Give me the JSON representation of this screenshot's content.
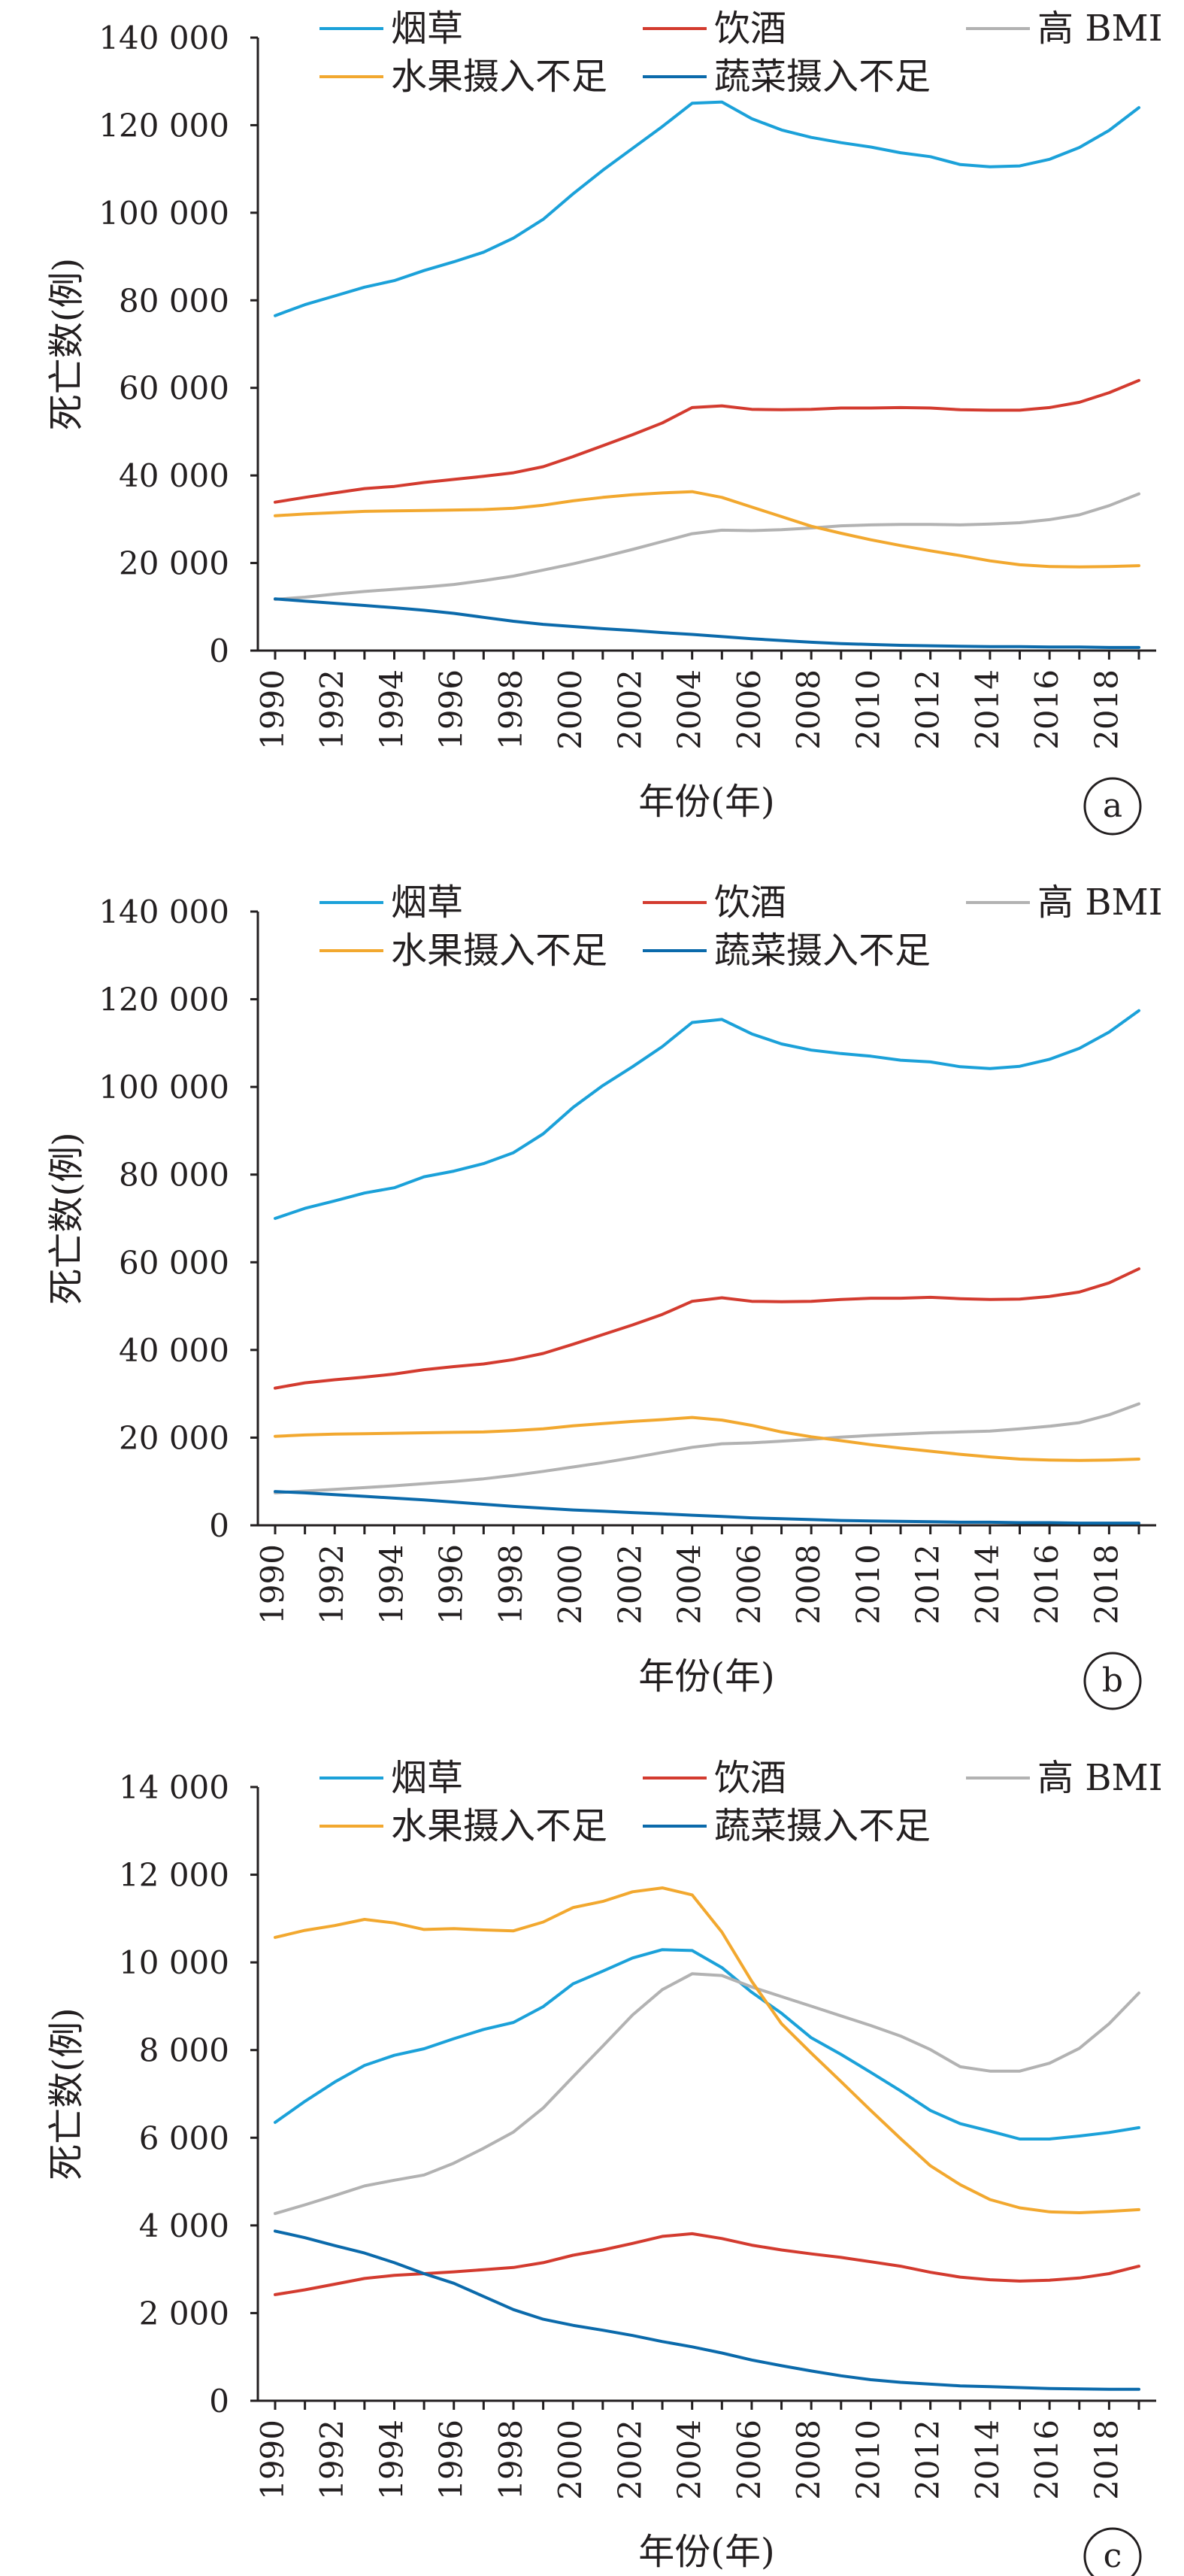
{
  "chart_data": [
    {
      "type": "line",
      "panel_label": "a",
      "xlabel": "年份(年)",
      "ylabel": "死亡数(例)",
      "ylim": [
        0,
        140000
      ],
      "yticks": [
        0,
        20000,
        40000,
        60000,
        80000,
        100000,
        120000,
        140000
      ],
      "ytick_labels": [
        "0",
        "20 000",
        "40 000",
        "60 000",
        "80 000",
        "100 000",
        "120 000",
        "140 000"
      ],
      "x": [
        1990,
        1991,
        1992,
        1993,
        1994,
        1995,
        1996,
        1997,
        1998,
        1999,
        2000,
        2001,
        2002,
        2003,
        2004,
        2005,
        2006,
        2007,
        2008,
        2009,
        2010,
        2011,
        2012,
        2013,
        2014,
        2015,
        2016,
        2017,
        2018,
        2019
      ],
      "xtick_labels": [
        "1990",
        "1992",
        "1994",
        "1996",
        "1998",
        "2000",
        "2002",
        "2004",
        "2006",
        "2008",
        "2010",
        "2012",
        "2014",
        "2016",
        "2018"
      ],
      "legend_position": "top",
      "grid": false,
      "series": [
        {
          "name": "烟草",
          "color": "#1ba1d9",
          "values": [
            76500,
            79000,
            81000,
            83000,
            84500,
            86800,
            88800,
            91000,
            94200,
            98500,
            104300,
            109700,
            114700,
            119700,
            125000,
            125300,
            121500,
            118900,
            117200,
            116000,
            115000,
            113700,
            112800,
            111000,
            110500,
            110700,
            112200,
            114900,
            118800,
            124000
          ]
        },
        {
          "name": "饮酒",
          "color": "#d33b2f",
          "values": [
            33900,
            35000,
            36000,
            37000,
            37500,
            38400,
            39100,
            39800,
            40600,
            42000,
            44300,
            46800,
            49300,
            52000,
            55500,
            55900,
            55100,
            55000,
            55100,
            55400,
            55400,
            55500,
            55400,
            55000,
            54900,
            54900,
            55500,
            56700,
            58900,
            61700
          ]
        },
        {
          "name": "高 BMI",
          "color": "#b2b2b2",
          "values": [
            11700,
            12200,
            12900,
            13500,
            14000,
            14500,
            15100,
            16000,
            17000,
            18400,
            19800,
            21400,
            23100,
            24900,
            26700,
            27500,
            27400,
            27600,
            28000,
            28500,
            28700,
            28800,
            28800,
            28700,
            28900,
            29200,
            29900,
            31000,
            33100,
            35800
          ]
        },
        {
          "name": "水果摄入不足",
          "color": "#f2a82f",
          "values": [
            30800,
            31200,
            31500,
            31800,
            31900,
            32000,
            32100,
            32200,
            32500,
            33200,
            34200,
            35000,
            35600,
            36000,
            36300,
            35000,
            32800,
            30600,
            28400,
            26800,
            25300,
            24000,
            22800,
            21700,
            20500,
            19600,
            19200,
            19100,
            19200,
            19400
          ]
        },
        {
          "name": "蔬菜摄入不足",
          "color": "#0b6aab",
          "values": [
            11800,
            11300,
            10800,
            10300,
            9800,
            9200,
            8500,
            7600,
            6700,
            6000,
            5500,
            5000,
            4600,
            4100,
            3700,
            3200,
            2700,
            2300,
            1900,
            1600,
            1400,
            1200,
            1100,
            1000,
            900,
            900,
            800,
            800,
            700,
            700
          ]
        }
      ]
    },
    {
      "type": "line",
      "panel_label": "b",
      "xlabel": "年份(年)",
      "ylabel": "死亡数(例)",
      "ylim": [
        0,
        140000
      ],
      "yticks": [
        0,
        20000,
        40000,
        60000,
        80000,
        100000,
        120000,
        140000
      ],
      "ytick_labels": [
        "0",
        "20 000",
        "40 000",
        "60 000",
        "80 000",
        "100 000",
        "120 000",
        "140 000"
      ],
      "x": [
        1990,
        1991,
        1992,
        1993,
        1994,
        1995,
        1996,
        1997,
        1998,
        1999,
        2000,
        2001,
        2002,
        2003,
        2004,
        2005,
        2006,
        2007,
        2008,
        2009,
        2010,
        2011,
        2012,
        2013,
        2014,
        2015,
        2016,
        2017,
        2018,
        2019
      ],
      "xtick_labels": [
        "1990",
        "1992",
        "1994",
        "1996",
        "1998",
        "2000",
        "2002",
        "2004",
        "2006",
        "2008",
        "2010",
        "2012",
        "2014",
        "2016",
        "2018"
      ],
      "legend_position": "top",
      "grid": false,
      "series": [
        {
          "name": "烟草",
          "color": "#1ba1d9",
          "values": [
            70000,
            72300,
            74000,
            75800,
            77000,
            79500,
            80800,
            82500,
            85000,
            89300,
            95300,
            100300,
            104600,
            109200,
            114700,
            115400,
            112100,
            109800,
            108400,
            107600,
            107000,
            106100,
            105700,
            104600,
            104200,
            104700,
            106300,
            108800,
            112500,
            117400
          ]
        },
        {
          "name": "饮酒",
          "color": "#d33b2f",
          "values": [
            31300,
            32500,
            33200,
            33800,
            34500,
            35500,
            36200,
            36800,
            37800,
            39200,
            41300,
            43500,
            45700,
            48100,
            51100,
            51900,
            51100,
            51000,
            51100,
            51500,
            51800,
            51800,
            52000,
            51700,
            51500,
            51600,
            52200,
            53200,
            55300,
            58500
          ]
        },
        {
          "name": "高 BMI",
          "color": "#b2b2b2",
          "values": [
            7400,
            7800,
            8200,
            8600,
            9000,
            9500,
            10000,
            10600,
            11400,
            12300,
            13300,
            14300,
            15400,
            16600,
            17800,
            18600,
            18800,
            19200,
            19600,
            20100,
            20500,
            20800,
            21100,
            21300,
            21500,
            22000,
            22600,
            23400,
            25200,
            27700
          ]
        },
        {
          "name": "水果摄入不足",
          "color": "#f2a82f",
          "values": [
            20300,
            20600,
            20800,
            20900,
            21000,
            21100,
            21200,
            21300,
            21600,
            22000,
            22700,
            23200,
            23700,
            24100,
            24600,
            24000,
            22800,
            21300,
            20200,
            19300,
            18400,
            17600,
            16900,
            16200,
            15600,
            15100,
            14900,
            14800,
            14900,
            15100
          ]
        },
        {
          "name": "蔬菜摄入不足",
          "color": "#0b6aab",
          "values": [
            7700,
            7400,
            7000,
            6600,
            6200,
            5800,
            5300,
            4800,
            4300,
            3900,
            3500,
            3200,
            2900,
            2600,
            2300,
            2000,
            1700,
            1500,
            1300,
            1100,
            1000,
            900,
            800,
            700,
            700,
            600,
            600,
            500,
            500,
            500
          ]
        }
      ]
    },
    {
      "type": "line",
      "panel_label": "c",
      "xlabel": "年份(年)",
      "ylabel": "死亡数(例)",
      "ylim": [
        0,
        14000
      ],
      "yticks": [
        0,
        2000,
        4000,
        6000,
        8000,
        10000,
        12000,
        14000
      ],
      "ytick_labels": [
        "0",
        "2 000",
        "4 000",
        "6 000",
        "8 000",
        "10 000",
        "12 000",
        "14 000"
      ],
      "x": [
        1990,
        1991,
        1992,
        1993,
        1994,
        1995,
        1996,
        1997,
        1998,
        1999,
        2000,
        2001,
        2002,
        2003,
        2004,
        2005,
        2006,
        2007,
        2008,
        2009,
        2010,
        2011,
        2012,
        2013,
        2014,
        2015,
        2016,
        2017,
        2018,
        2019
      ],
      "xtick_labels": [
        "1990",
        "1992",
        "1994",
        "1996",
        "1998",
        "2000",
        "2002",
        "2004",
        "2006",
        "2008",
        "2010",
        "2012",
        "2014",
        "2016",
        "2018"
      ],
      "legend_position": "top",
      "grid": false,
      "series": [
        {
          "name": "烟草",
          "color": "#1ba1d9",
          "values": [
            6350,
            6830,
            7270,
            7650,
            7880,
            8030,
            8260,
            8470,
            8630,
            8990,
            9510,
            9800,
            10100,
            10290,
            10270,
            9880,
            9320,
            8840,
            8280,
            7900,
            7490,
            7070,
            6620,
            6320,
            6150,
            5970,
            5970,
            6040,
            6120,
            6230
          ]
        },
        {
          "name": "饮酒",
          "color": "#d33b2f",
          "values": [
            2420,
            2530,
            2660,
            2790,
            2860,
            2900,
            2940,
            2990,
            3040,
            3150,
            3320,
            3440,
            3590,
            3750,
            3810,
            3700,
            3550,
            3440,
            3350,
            3270,
            3170,
            3070,
            2930,
            2820,
            2760,
            2730,
            2750,
            2800,
            2900,
            3070
          ]
        },
        {
          "name": "高 BMI",
          "color": "#b2b2b2",
          "values": [
            4270,
            4470,
            4680,
            4900,
            5030,
            5150,
            5420,
            5760,
            6130,
            6680,
            7390,
            8090,
            8800,
            9380,
            9740,
            9700,
            9440,
            9220,
            9000,
            8780,
            8560,
            8320,
            8010,
            7620,
            7520,
            7520,
            7700,
            8040,
            8600,
            9300
          ]
        },
        {
          "name": "水果摄入不足",
          "color": "#f2a82f",
          "values": [
            10570,
            10730,
            10840,
            10980,
            10900,
            10750,
            10770,
            10740,
            10720,
            10920,
            11250,
            11390,
            11610,
            11700,
            11540,
            10690,
            9570,
            8600,
            7930,
            7280,
            6620,
            5980,
            5360,
            4930,
            4590,
            4400,
            4310,
            4290,
            4320,
            4360
          ]
        },
        {
          "name": "蔬菜摄入不足",
          "color": "#0b6aab",
          "values": [
            3870,
            3720,
            3540,
            3370,
            3150,
            2900,
            2680,
            2380,
            2080,
            1860,
            1720,
            1610,
            1490,
            1350,
            1230,
            1090,
            930,
            800,
            680,
            570,
            480,
            420,
            380,
            340,
            320,
            300,
            280,
            270,
            260,
            260
          ]
        }
      ]
    }
  ]
}
